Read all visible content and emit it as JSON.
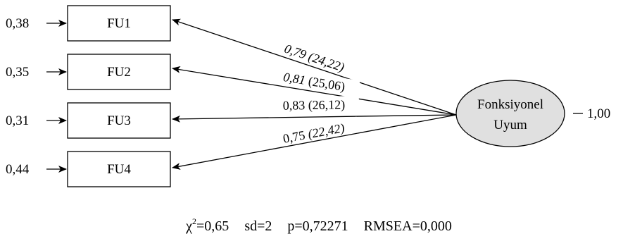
{
  "indicators": [
    {
      "label": "FU1",
      "error": "0,38",
      "loading": "0,79",
      "t_value": "(24,22)"
    },
    {
      "label": "FU2",
      "error": "0,35",
      "loading": "0,81",
      "t_value": "(25,06)"
    },
    {
      "label": "FU3",
      "error": "0,31",
      "loading": "0,83",
      "t_value": "(26,12)"
    },
    {
      "label": "FU4",
      "error": "0,44",
      "loading": "0,75",
      "t_value": "(22,42)"
    }
  ],
  "latent": {
    "line1": "Fonksiyonel",
    "line2": "Uyum",
    "variance": "1,00",
    "fill_color": "#e0e0e0"
  },
  "fit": {
    "chi_symbol": "χ",
    "chi_superscript": "2",
    "chi_value": "=0,65",
    "sd": "sd=2",
    "p": "p=0,72271",
    "rmsea": "RMSEA=0,000"
  }
}
